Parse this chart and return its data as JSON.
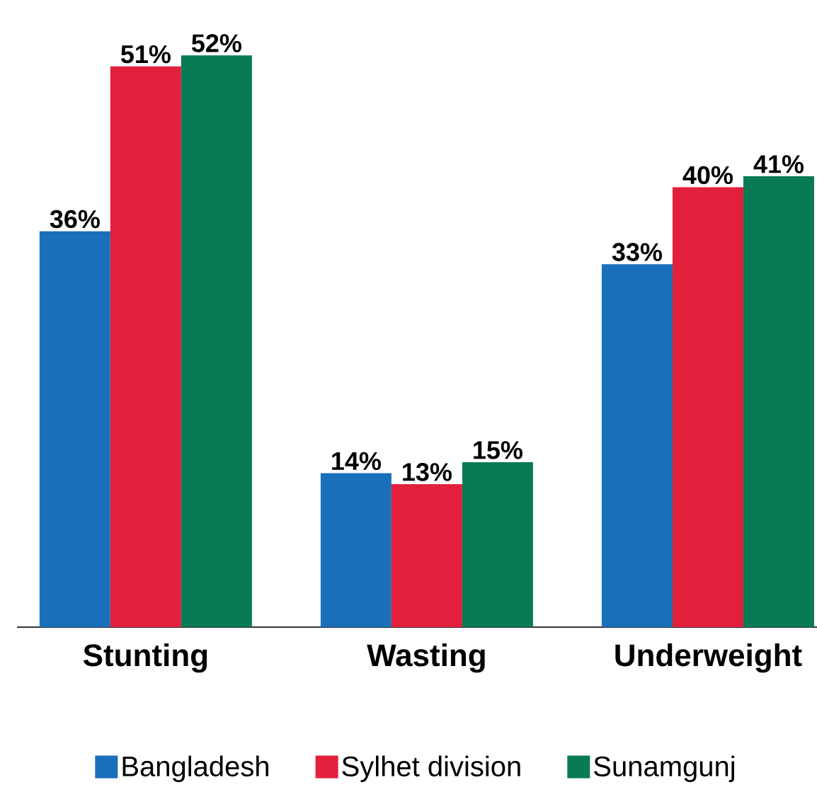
{
  "chart_data": {
    "type": "bar",
    "categories": [
      "Stunting",
      "Wasting",
      "Underweight"
    ],
    "series": [
      {
        "name": "Bangladesh",
        "color": "#1a6fba",
        "values": [
          36,
          14,
          33
        ],
        "value_labels": [
          "36%",
          "14%",
          "33%"
        ]
      },
      {
        "name": "Sylhet division",
        "color": "#e2203c",
        "values": [
          51,
          13,
          40
        ],
        "value_labels": [
          "51%",
          "13%",
          "40%"
        ]
      },
      {
        "name": "Sunamgunj",
        "color": "#087a55",
        "values": [
          52,
          15,
          41
        ],
        "value_labels": [
          "52%",
          "15%",
          "41%"
        ]
      }
    ],
    "legend": "bottom"
  }
}
